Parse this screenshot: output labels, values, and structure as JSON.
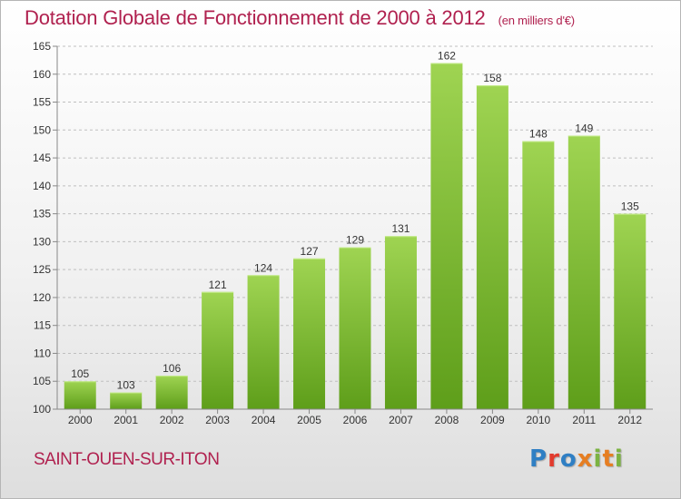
{
  "header": {
    "title": "Dotation Globale de Fonctionnement de 2000 à 2012",
    "unit": "(en milliers d'€)"
  },
  "commune": "SAINT-OUEN-SUR-ITON",
  "logo": {
    "text": "Proxiti",
    "letters": [
      {
        "ch": "P",
        "color": "#2f7fc4"
      },
      {
        "ch": "r",
        "color": "#e23b2e"
      },
      {
        "ch": "o",
        "color": "#2f7fc4"
      },
      {
        "ch": "x",
        "color": "#e67e22"
      },
      {
        "ch": "i",
        "color": "#7cb342"
      },
      {
        "ch": "t",
        "color": "#e67e22"
      },
      {
        "ch": "i",
        "color": "#7cb342"
      }
    ]
  },
  "colors": {
    "accent": "#b0214f",
    "bar_top": "#9fd452",
    "bar_bottom": "#5e9e1a",
    "grid": "#bfbfbf"
  },
  "chart_data": {
    "type": "bar",
    "title": "Dotation Globale de Fonctionnement de 2000 à 2012",
    "subtitle": "(en milliers d'€)",
    "categories": [
      "2000",
      "2001",
      "2002",
      "2003",
      "2004",
      "2005",
      "2006",
      "2007",
      "2008",
      "2009",
      "2010",
      "2011",
      "2012"
    ],
    "values": [
      105,
      103,
      106,
      121,
      124,
      127,
      129,
      131,
      162,
      158,
      148,
      149,
      135
    ],
    "data_labels": [
      "105",
      "103",
      "106",
      "121",
      "124",
      "127",
      "129",
      "131",
      "162",
      "158",
      "148",
      "149",
      "135"
    ],
    "ylim": [
      100,
      165
    ],
    "yticks": [
      100,
      105,
      110,
      115,
      120,
      125,
      130,
      135,
      140,
      145,
      150,
      155,
      160,
      165
    ],
    "grid": true,
    "legend": "none"
  }
}
